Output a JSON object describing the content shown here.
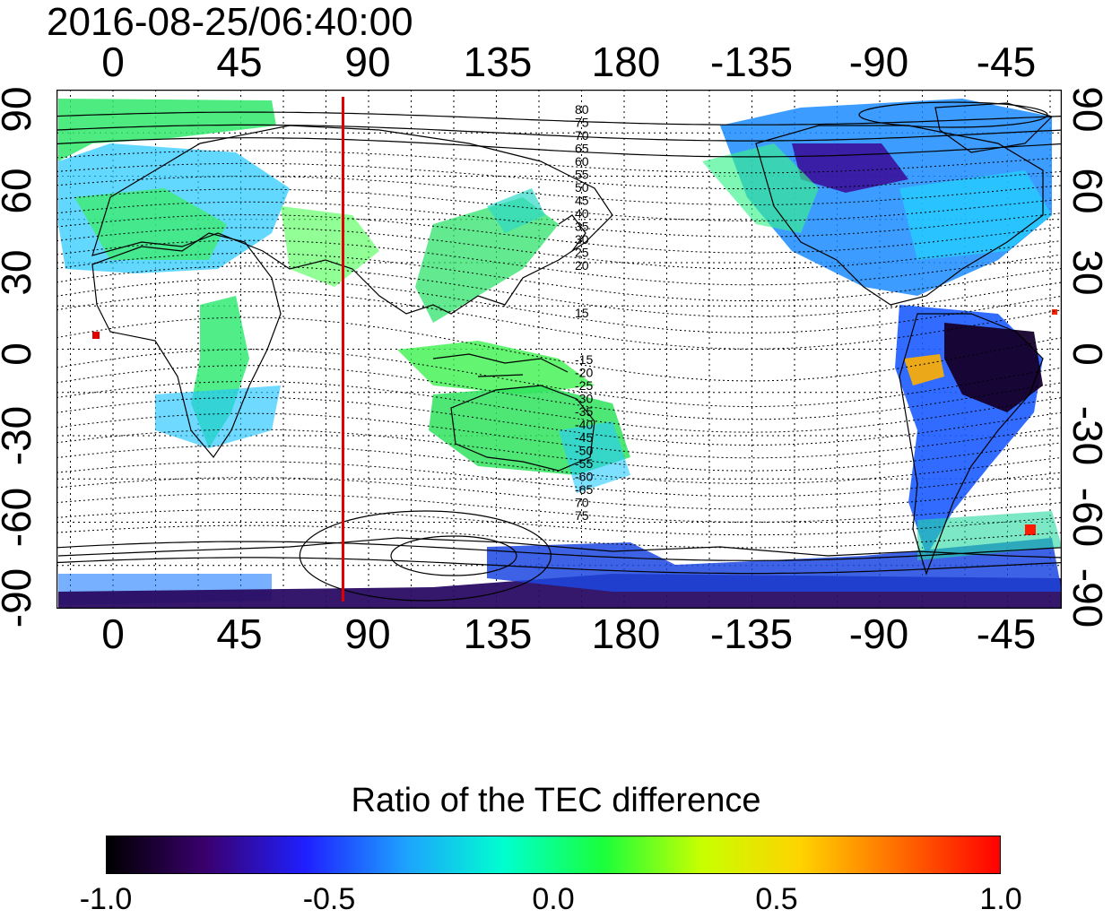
{
  "title": "2016-08-25/06:40:00",
  "lon_labels": [
    "0",
    "45",
    "90",
    "135",
    "180",
    "-135",
    "-90",
    "-45"
  ],
  "lat_labels": [
    "90",
    "60",
    "30",
    "0",
    "-30",
    "-60",
    "-90"
  ],
  "magnetic_lat_labels_north": [
    "80",
    "75",
    "70",
    "65",
    "60",
    "55",
    "50",
    "45",
    "40",
    "35",
    "30",
    "25",
    "20",
    "15"
  ],
  "magnetic_lat_labels_south": [
    "-15",
    "-20",
    "-25",
    "-30",
    "-35",
    "-40",
    "-45",
    "-50",
    "-55",
    "-60",
    "-65",
    "70",
    "75"
  ],
  "colorbar": {
    "title": "Ratio of the TEC difference",
    "ticks": [
      "-1.0",
      "-0.5",
      "0.0",
      "0.5",
      "1.0"
    ],
    "min": -1.0,
    "max": 1.0,
    "colors": [
      "#000000",
      "#3a006e",
      "#1f1fff",
      "#1ea0ff",
      "#00ffd0",
      "#19ff3c",
      "#c8ff00",
      "#ffd200",
      "#ff6a00",
      "#ff0000"
    ]
  },
  "marker": {
    "longitude": 81,
    "color": "#e00000"
  }
}
